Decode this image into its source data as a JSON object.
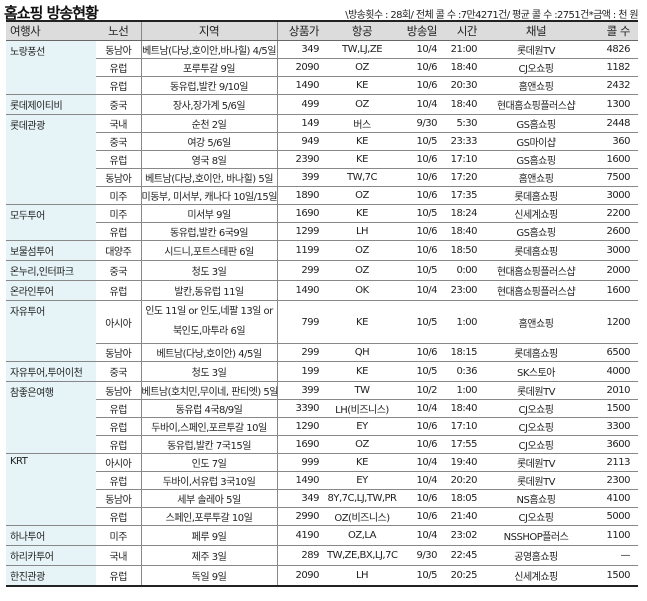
{
  "header": {
    "title": "홈쇼핑 방송현황",
    "summary": "\\방송횟수 : 28회/ 전체 콜 수 :7만4271건/ 평균 콜 수 :2751건*금액 : 천 원"
  },
  "table": {
    "columns": [
      "여행사",
      "노선",
      "지역",
      "상품가",
      "항공",
      "방송일",
      "시간",
      "채널",
      "콜 수"
    ],
    "groups": [
      {
        "agency": "노랑풍선",
        "rows": [
          {
            "route": "동남아",
            "region": "베트남(다낭,호이안,바나힐) 4/5일",
            "price": "349",
            "airline": "TW,LJ,ZE",
            "date": "10/4",
            "time": "21:00",
            "channel": "롯데원TV",
            "calls": "4826"
          },
          {
            "route": "유럽",
            "region": "포루투갈 9일",
            "price": "2090",
            "airline": "OZ",
            "date": "10/6",
            "time": "18:40",
            "channel": "CJ오쇼핑",
            "calls": "1182"
          },
          {
            "route": "유럽",
            "region": "동유럽,발칸 9/10일",
            "price": "1490",
            "airline": "KE",
            "date": "10/6",
            "time": "20:30",
            "channel": "홈앤쇼핑",
            "calls": "2432"
          }
        ]
      },
      {
        "agency": "롯데제이티비",
        "rows": [
          {
            "route": "중국",
            "region": "장사,장가계 5/6일",
            "price": "499",
            "airline": "OZ",
            "date": "10/4",
            "time": "18:40",
            "channel": "현대홈쇼핑플러스샵",
            "calls": "1300"
          }
        ]
      },
      {
        "agency": "롯데관광",
        "rows": [
          {
            "route": "국내",
            "region": "순천 2일",
            "price": "149",
            "airline": "버스",
            "date": "9/30",
            "time": "5:30",
            "channel": "GS홈쇼핑",
            "calls": "2448"
          },
          {
            "route": "중국",
            "region": "여강 5/6일",
            "price": "949",
            "airline": "KE",
            "date": "10/5",
            "time": "23:33",
            "channel": "GS마이샵",
            "calls": "360"
          },
          {
            "route": "유럽",
            "region": "영국 8일",
            "price": "2390",
            "airline": "KE",
            "date": "10/6",
            "time": "17:10",
            "channel": "GS홈쇼핑",
            "calls": "1600"
          },
          {
            "route": "동남아",
            "region": "베트남(다낭,호이안, 바나힐) 5일",
            "price": "399",
            "airline": "TW,7C",
            "date": "10/6",
            "time": "17:20",
            "channel": "홈앤쇼핑",
            "calls": "7500"
          },
          {
            "route": "미주",
            "region": "미동부, 미서부, 캐나다 10일/15일",
            "price": "1890",
            "airline": "OZ",
            "date": "10/6",
            "time": "17:35",
            "channel": "롯데홈쇼핑",
            "calls": "3000"
          }
        ]
      },
      {
        "agency": "모두투어",
        "rows": [
          {
            "route": "미주",
            "region": "미서부 9일",
            "price": "1690",
            "airline": "KE",
            "date": "10/5",
            "time": "18:24",
            "channel": "신세계쇼핑",
            "calls": "2200"
          },
          {
            "route": "유럽",
            "region": "동유럽,발칸 6국9일",
            "price": "1299",
            "airline": "LH",
            "date": "10/6",
            "time": "18:40",
            "channel": "GS홈쇼핑",
            "calls": "2600"
          }
        ]
      },
      {
        "agency": "보물섬투어",
        "rows": [
          {
            "route": "대양주",
            "region": "시드니,포트스테판 6일",
            "price": "1199",
            "airline": "OZ",
            "date": "10/6",
            "time": "18:50",
            "channel": "롯데홈쇼핑",
            "calls": "3000"
          }
        ]
      },
      {
        "agency": "온누리,인터파크",
        "rows": [
          {
            "route": "중국",
            "region": "청도 3일",
            "price": "299",
            "airline": "OZ",
            "date": "10/5",
            "time": "0:00",
            "channel": "현대홈쇼핑플러스샵",
            "calls": "2000"
          }
        ]
      },
      {
        "agency": "온라인투어",
        "rows": [
          {
            "route": "유럽",
            "region": "발칸,동유럽 11일",
            "price": "1490",
            "airline": "OK",
            "date": "10/4",
            "time": "23:00",
            "channel": "현대홈쇼핑플러스샵",
            "calls": "1600"
          }
        ]
      },
      {
        "agency": "자유투어",
        "rows": [
          {
            "route": "아시아",
            "region": "인도 11일 or 인도,네팔 13일 or 북인도,마투라 6일",
            "price": "799",
            "airline": "KE",
            "date": "10/5",
            "time": "1:00",
            "channel": "홈앤쇼핑",
            "calls": "1200",
            "tall": true
          },
          {
            "route": "동남아",
            "region": "베트남(다낭,호이안) 4/5일",
            "price": "299",
            "airline": "QH",
            "date": "10/6",
            "time": "18:15",
            "channel": "롯데홈쇼핑",
            "calls": "6500"
          }
        ]
      },
      {
        "agency": "자유투어,투어이천",
        "rows": [
          {
            "route": "중국",
            "region": "청도 3일",
            "price": "199",
            "airline": "KE",
            "date": "10/5",
            "time": "0:36",
            "channel": "SK스토아",
            "calls": "4000"
          }
        ]
      },
      {
        "agency": "참좋은여행",
        "rows": [
          {
            "route": "동남아",
            "region": "베트남(호치민,무이네, 판티엣) 5일",
            "price": "399",
            "airline": "TW",
            "date": "10/2",
            "time": "1:00",
            "channel": "롯데원TV",
            "calls": "2010"
          },
          {
            "route": "유럽",
            "region": "동유럽 4국8/9일",
            "price": "3390",
            "airline": "LH(비즈니스)",
            "date": "10/4",
            "time": "18:40",
            "channel": "CJ오쇼핑",
            "calls": "1500"
          },
          {
            "route": "유럽",
            "region": "두바이,스페인,포르투갈 10일",
            "price": "1290",
            "airline": "EY",
            "date": "10/6",
            "time": "17:10",
            "channel": "CJ오쇼핑",
            "calls": "3300"
          },
          {
            "route": "유럽",
            "region": "동유럽,발칸 7국15일",
            "price": "1690",
            "airline": "OZ",
            "date": "10/6",
            "time": "17:55",
            "channel": "CJ오쇼핑",
            "calls": "3600"
          }
        ]
      },
      {
        "agency": "KRT",
        "rows": [
          {
            "route": "아시아",
            "region": "인도 7일",
            "price": "999",
            "airline": "KE",
            "date": "10/4",
            "time": "19:40",
            "channel": "롯데원TV",
            "calls": "2113"
          },
          {
            "route": "유럽",
            "region": "두바이,서유럽 3국10일",
            "price": "1490",
            "airline": "EY",
            "date": "10/4",
            "time": "20:20",
            "channel": "롯데원TV",
            "calls": "2300"
          },
          {
            "route": "동남아",
            "region": "세부 솔레아 5일",
            "price": "349",
            "airline": "8Y,7C,LJ,TW,PR",
            "date": "10/6",
            "time": "18:05",
            "channel": "NS홈쇼핑",
            "calls": "4100"
          },
          {
            "route": "유럽",
            "region": "스페인,포루투갈 10일",
            "price": "2990",
            "airline": "OZ(비즈니스)",
            "date": "10/6",
            "time": "21:40",
            "channel": "CJ오쇼핑",
            "calls": "5000"
          }
        ]
      },
      {
        "agency": "하나투어",
        "rows": [
          {
            "route": "미주",
            "region": "페루 9일",
            "price": "4190",
            "airline": "OZ,LA",
            "date": "10/4",
            "time": "23:02",
            "channel": "NSSHOP플러스",
            "calls": "1100"
          }
        ]
      },
      {
        "agency": "하리카투어",
        "rows": [
          {
            "route": "국내",
            "region": "제주 3일",
            "price": "289",
            "airline": "TW,ZE,BX,LJ,7C",
            "date": "9/30",
            "time": "22:45",
            "channel": "공영홈쇼핑",
            "calls": "—"
          }
        ]
      },
      {
        "agency": "한진관광",
        "rows": [
          {
            "route": "유럽",
            "region": "독일 9일",
            "price": "2090",
            "airline": "LH",
            "date": "10/5",
            "time": "20:25",
            "channel": "신세계쇼핑",
            "calls": "1500"
          }
        ]
      }
    ]
  },
  "colors": {
    "header_bg": "#dcdcdc",
    "agency_bg": "#e6f4f8",
    "rule": "#222222"
  }
}
